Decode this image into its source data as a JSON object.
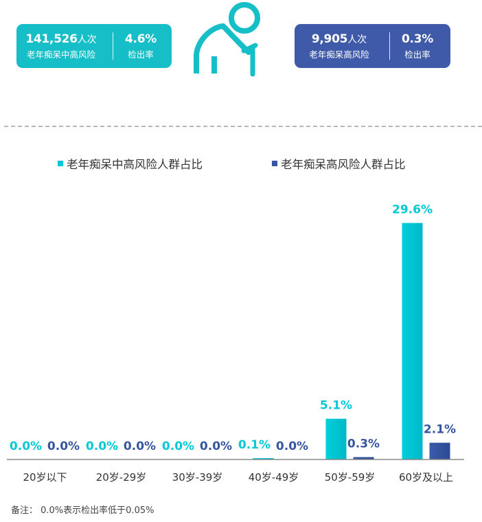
{
  "cards": {
    "left": {
      "count": "141,526",
      "count_unit": "人次",
      "count_label": "老年痴呆中高风险",
      "rate": "4.6%",
      "rate_label": "检出率",
      "color": "#16bec8"
    },
    "right": {
      "count": "9,905",
      "count_unit": "人次",
      "count_label": "老年痴呆高风险",
      "rate": "0.3%",
      "rate_label": "检出率",
      "color": "#3f5aa8"
    }
  },
  "icon": "elderly-person-with-cane-icon",
  "chart_data": {
    "type": "bar",
    "categories": [
      "20岁以下",
      "20岁-29岁",
      "30岁-39岁",
      "40岁-49岁",
      "50岁-59岁",
      "60岁及以上"
    ],
    "series": [
      {
        "name": "老年痴呆中高风险人群占比",
        "values": [
          0.0,
          0.0,
          0.0,
          0.1,
          5.1,
          29.6
        ],
        "labels": [
          "0.0%",
          "0.0%",
          "0.0%",
          "0.1%",
          "5.1%",
          "29.6%"
        ],
        "color": "#00c8d7"
      },
      {
        "name": "老年痴呆高风险人群占比",
        "values": [
          0.0,
          0.0,
          0.0,
          0.0,
          0.3,
          2.1
        ],
        "labels": [
          "0.0%",
          "0.0%",
          "0.0%",
          "0.0%",
          "0.3%",
          "2.1%"
        ],
        "color": "#3555a0"
      }
    ],
    "ylim": [
      0,
      30
    ],
    "legend_position": "top",
    "grid": false
  },
  "note": "备注： 0.0%表示检出率低于0.05%"
}
